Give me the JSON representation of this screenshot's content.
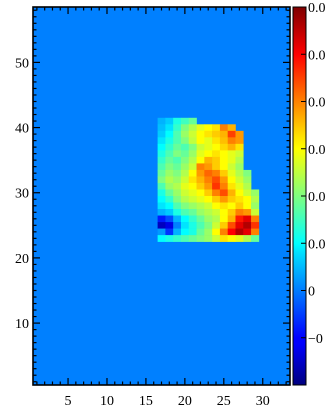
{
  "chart_data": {
    "type": "heatmap",
    "title": "",
    "xlabel": "",
    "ylabel": "",
    "xlim": [
      0.5,
      33.5
    ],
    "ylim": [
      0.5,
      58.5
    ],
    "background_value": 0.0,
    "x_ticks": [
      5,
      10,
      15,
      20,
      25,
      30
    ],
    "y_ticks": [
      10,
      20,
      30,
      40,
      50
    ],
    "x_tick_labels": [
      "5",
      "10",
      "15",
      "20",
      "25",
      "30"
    ],
    "y_tick_labels": [
      "10",
      "20",
      "30",
      "40",
      "50"
    ],
    "colormap": "jet",
    "colorbar": {
      "range": [
        -0.02,
        0.06
      ],
      "tick_values": [
        -0.01,
        0.0,
        0.01,
        0.02,
        0.03,
        0.04,
        0.05,
        0.06
      ],
      "tick_labels": [
        "−0",
        "0",
        "0.0",
        "0.0",
        "0.0",
        "0.0",
        "0.0",
        "0.0"
      ]
    },
    "region_rows": [
      {
        "y": 41,
        "x_start": 17,
        "values": [
          0.004,
          0.006,
          0.012,
          0.015,
          0.018
        ]
      },
      {
        "y": 40,
        "x_start": 17,
        "values": [
          0.005,
          0.008,
          0.014,
          0.02,
          0.024,
          0.028,
          0.03,
          0.032,
          0.04,
          0.036
        ]
      },
      {
        "y": 39,
        "x_start": 17,
        "values": [
          0.006,
          0.01,
          0.016,
          0.022,
          0.026,
          0.03,
          0.032,
          0.034,
          0.036,
          0.045,
          0.038
        ]
      },
      {
        "y": 38,
        "x_start": 17,
        "values": [
          0.008,
          0.012,
          0.016,
          0.02,
          0.025,
          0.03,
          0.028,
          0.032,
          0.035,
          0.04,
          0.038
        ]
      },
      {
        "y": 37,
        "x_start": 17,
        "values": [
          0.01,
          0.014,
          0.018,
          0.016,
          0.02,
          0.026,
          0.028,
          0.03,
          0.033,
          0.036,
          0.032
        ]
      },
      {
        "y": 36,
        "x_start": 17,
        "values": [
          0.012,
          0.016,
          0.02,
          0.018,
          0.022,
          0.028,
          0.03,
          0.032,
          0.03,
          0.028,
          0.026
        ]
      },
      {
        "y": 35,
        "x_start": 17,
        "values": [
          0.014,
          0.018,
          0.016,
          0.02,
          0.024,
          0.03,
          0.036,
          0.034,
          0.03,
          0.028,
          0.024
        ]
      },
      {
        "y": 34,
        "x_start": 17,
        "values": [
          0.016,
          0.02,
          0.018,
          0.022,
          0.026,
          0.04,
          0.038,
          0.034,
          0.03,
          0.026,
          0.022
        ]
      },
      {
        "y": 33,
        "x_start": 17,
        "values": [
          0.018,
          0.022,
          0.02,
          0.024,
          0.03,
          0.038,
          0.042,
          0.04,
          0.034,
          0.028,
          0.024,
          0.02
        ]
      },
      {
        "y": 32,
        "x_start": 17,
        "values": [
          0.02,
          0.024,
          0.022,
          0.026,
          0.032,
          0.036,
          0.04,
          0.044,
          0.038,
          0.03,
          0.026,
          0.022
        ]
      },
      {
        "y": 31,
        "x_start": 17,
        "values": [
          0.016,
          0.022,
          0.024,
          0.028,
          0.03,
          0.034,
          0.038,
          0.046,
          0.04,
          0.032,
          0.028,
          0.024
        ]
      },
      {
        "y": 30,
        "x_start": 17,
        "values": [
          0.012,
          0.018,
          0.022,
          0.026,
          0.028,
          0.03,
          0.034,
          0.04,
          0.044,
          0.036,
          0.03,
          0.026,
          0.022
        ]
      },
      {
        "y": 29,
        "x_start": 17,
        "values": [
          0.01,
          0.014,
          0.02,
          0.024,
          0.026,
          0.028,
          0.03,
          0.034,
          0.038,
          0.034,
          0.032,
          0.03,
          0.024
        ]
      },
      {
        "y": 28,
        "x_start": 17,
        "values": [
          0.008,
          0.01,
          0.016,
          0.02,
          0.022,
          0.024,
          0.026,
          0.03,
          0.032,
          0.03,
          0.034,
          0.03,
          0.022
        ]
      },
      {
        "y": 27,
        "x_start": 17,
        "values": [
          0.004,
          0.006,
          0.012,
          0.016,
          0.018,
          0.022,
          0.024,
          0.026,
          0.03,
          0.034,
          0.04,
          0.038,
          0.026
        ]
      },
      {
        "y": 26,
        "x_start": 17,
        "values": [
          -0.008,
          -0.004,
          0.004,
          0.01,
          0.014,
          0.018,
          0.022,
          0.024,
          0.03,
          0.036,
          0.048,
          0.052,
          0.04
        ]
      },
      {
        "y": 25,
        "x_start": 17,
        "values": [
          -0.015,
          -0.012,
          0.0,
          0.008,
          0.012,
          0.016,
          0.02,
          0.026,
          0.034,
          0.044,
          0.052,
          0.056,
          0.046
        ]
      },
      {
        "y": 24,
        "x_start": 17,
        "values": [
          0.002,
          -0.006,
          0.004,
          0.01,
          0.012,
          0.018,
          0.022,
          0.03,
          0.04,
          0.05,
          0.056,
          0.052,
          0.04
        ]
      },
      {
        "y": 23,
        "x_start": 17,
        "values": [
          0.01,
          0.012,
          0.014,
          0.016,
          0.018,
          0.02,
          0.022,
          0.026,
          0.032,
          0.03,
          0.028,
          0.024,
          0.018
        ]
      }
    ]
  }
}
